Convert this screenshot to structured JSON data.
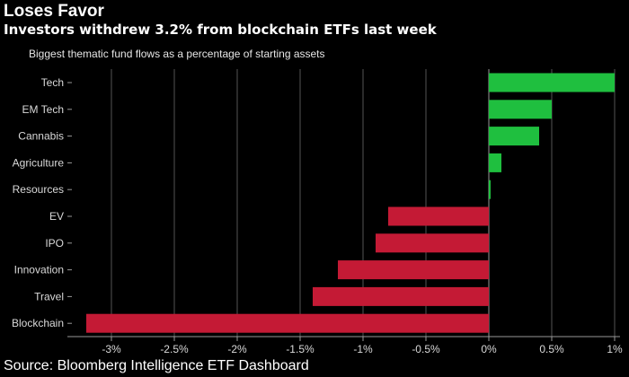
{
  "title": "Loses Favor",
  "subtitle": "Investors withdrew 3.2% from blockchain ETFs last week",
  "source": "Source: Bloomberg Intelligence ETF Dashboard",
  "chart_data": {
    "type": "bar",
    "orientation": "horizontal",
    "title": "Biggest thematic fund flows as a percentage of starting assets",
    "categories": [
      "Tech",
      "EM Tech",
      "Cannabis",
      "Agriculture",
      "Resources",
      "EV",
      "IPO",
      "Innovation",
      "Travel",
      "Blockchain"
    ],
    "values": [
      1.0,
      0.5,
      0.4,
      0.1,
      0.01,
      -0.8,
      -0.9,
      -1.2,
      -1.4,
      -3.2
    ],
    "xlabel": "",
    "ylabel": "",
    "xlim": [
      -3.35,
      1.0
    ],
    "xticks": [
      -3,
      -2.5,
      -2,
      -1.5,
      -1,
      -0.5,
      0,
      0.5,
      1
    ],
    "xtick_labels": [
      "-3%",
      "-2.5%",
      "-2%",
      "-1.5%",
      "-1%",
      "-0.5%",
      "0%",
      "0.5%",
      "1%"
    ],
    "grid": "vertical",
    "colors": {
      "positive": "#1fbf3f",
      "negative": "#c41a35",
      "grid": "#555555"
    }
  }
}
